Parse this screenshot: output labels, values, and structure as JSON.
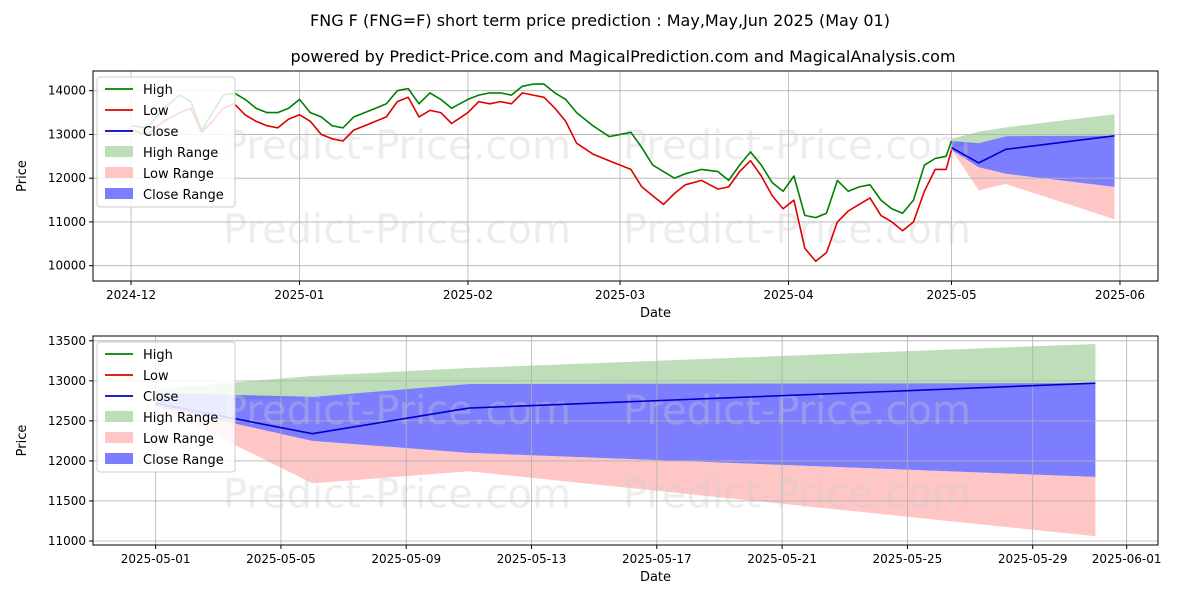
{
  "title": "FNG F (FNG=F) short term price prediction : May,May,Jun 2025 (May 01)",
  "subtitle": "powered by Predict-Price.com and MagicalPrediction.com and MagicalAnalysis.com",
  "watermark": "Predict-Price.com",
  "colors": {
    "high": "#008000",
    "low": "#e00000",
    "close": "#0000cc",
    "high_range": "#a7d3a1",
    "low_range": "#ffb3b3",
    "close_range": "#6666ff"
  },
  "chart_data": [
    {
      "type": "line",
      "xlabel": "Date",
      "ylabel": "Price",
      "ylim": [
        9650,
        14450
      ],
      "yticks": [
        10000,
        11000,
        12000,
        13000,
        14000
      ],
      "xticks": [
        "2024-12",
        "2025-01",
        "2025-02",
        "2025-03",
        "2025-04",
        "2025-05",
        "2025-06"
      ],
      "xlim": [
        "2024-11-24",
        "2025-06-08"
      ],
      "grid": true,
      "legend_position": "top-left",
      "legend": [
        "High",
        "Low",
        "Close",
        "High Range",
        "Low Range",
        "Close Range"
      ],
      "series": [
        {
          "name": "High",
          "x": [
            "2024-12-01",
            "2024-12-04",
            "2024-12-07",
            "2024-12-10",
            "2024-12-12",
            "2024-12-14",
            "2024-12-16",
            "2024-12-18",
            "2024-12-20",
            "2024-12-22",
            "2024-12-24",
            "2024-12-26",
            "2024-12-28",
            "2024-12-30",
            "2025-01-01",
            "2025-01-03",
            "2025-01-05",
            "2025-01-07",
            "2025-01-09",
            "2025-01-11",
            "2025-01-13",
            "2025-01-15",
            "2025-01-17",
            "2025-01-19",
            "2025-01-21",
            "2025-01-23",
            "2025-01-25",
            "2025-01-27",
            "2025-01-29",
            "2025-02-01",
            "2025-02-03",
            "2025-02-05",
            "2025-02-07",
            "2025-02-09",
            "2025-02-11",
            "2025-02-13",
            "2025-02-15",
            "2025-02-17",
            "2025-02-19",
            "2025-02-21",
            "2025-02-24",
            "2025-02-27",
            "2025-03-03",
            "2025-03-05",
            "2025-03-07",
            "2025-03-09",
            "2025-03-11",
            "2025-03-13",
            "2025-03-16",
            "2025-03-19",
            "2025-03-21",
            "2025-03-23",
            "2025-03-25",
            "2025-03-27",
            "2025-03-29",
            "2025-03-31",
            "2025-04-02",
            "2025-04-04",
            "2025-04-06",
            "2025-04-08",
            "2025-04-10",
            "2025-04-12",
            "2025-04-14",
            "2025-04-16",
            "2025-04-18",
            "2025-04-20",
            "2025-04-22",
            "2025-04-24",
            "2025-04-26",
            "2025-04-28",
            "2025-04-30",
            "2025-05-01"
          ],
          "values": [
            13200,
            13150,
            13600,
            13900,
            13750,
            13100,
            13500,
            13900,
            13950,
            13800,
            13600,
            13500,
            13500,
            13600,
            13800,
            13500,
            13400,
            13200,
            13150,
            13400,
            13500,
            13600,
            13700,
            14000,
            14050,
            13700,
            13950,
            13800,
            13600,
            13800,
            13900,
            13950,
            13950,
            13900,
            14100,
            14150,
            14150,
            13950,
            13800,
            13500,
            13200,
            12950,
            13050,
            12700,
            12300,
            12150,
            12000,
            12100,
            12200,
            12150,
            11950,
            12300,
            12600,
            12300,
            11900,
            11700,
            12050,
            11150,
            11100,
            11200,
            11950,
            11700,
            11800,
            11850,
            11500,
            11300,
            11200,
            11500,
            12300,
            12450,
            12500,
            12850
          ]
        },
        {
          "name": "Low",
          "x": [
            "2024-12-01",
            "2024-12-04",
            "2024-12-07",
            "2024-12-10",
            "2024-12-12",
            "2024-12-14",
            "2024-12-16",
            "2024-12-18",
            "2024-12-20",
            "2024-12-22",
            "2024-12-24",
            "2024-12-26",
            "2024-12-28",
            "2024-12-30",
            "2025-01-01",
            "2025-01-03",
            "2025-01-05",
            "2025-01-07",
            "2025-01-09",
            "2025-01-11",
            "2025-01-13",
            "2025-01-15",
            "2025-01-17",
            "2025-01-19",
            "2025-01-21",
            "2025-01-23",
            "2025-01-25",
            "2025-01-27",
            "2025-01-29",
            "2025-02-01",
            "2025-02-03",
            "2025-02-05",
            "2025-02-07",
            "2025-02-09",
            "2025-02-11",
            "2025-02-13",
            "2025-02-15",
            "2025-02-17",
            "2025-02-19",
            "2025-02-21",
            "2025-02-24",
            "2025-02-27",
            "2025-03-03",
            "2025-03-05",
            "2025-03-07",
            "2025-03-09",
            "2025-03-11",
            "2025-03-13",
            "2025-03-16",
            "2025-03-19",
            "2025-03-21",
            "2025-03-23",
            "2025-03-25",
            "2025-03-27",
            "2025-03-29",
            "2025-03-31",
            "2025-04-02",
            "2025-04-04",
            "2025-04-06",
            "2025-04-08",
            "2025-04-10",
            "2025-04-12",
            "2025-04-14",
            "2025-04-16",
            "2025-04-18",
            "2025-04-20",
            "2025-04-22",
            "2025-04-24",
            "2025-04-26",
            "2025-04-28",
            "2025-04-30",
            "2025-05-01"
          ],
          "values": [
            13100,
            13000,
            13300,
            13500,
            13600,
            13050,
            13300,
            13600,
            13700,
            13450,
            13300,
            13200,
            13150,
            13350,
            13450,
            13300,
            13000,
            12900,
            12850,
            13100,
            13200,
            13300,
            13400,
            13750,
            13850,
            13400,
            13550,
            13500,
            13250,
            13500,
            13750,
            13700,
            13750,
            13700,
            13950,
            13900,
            13850,
            13600,
            13300,
            12800,
            12550,
            12400,
            12200,
            11800,
            11600,
            11400,
            11650,
            11850,
            11950,
            11750,
            11800,
            12150,
            12400,
            12050,
            11600,
            11300,
            11500,
            10400,
            10100,
            10300,
            11000,
            11250,
            11400,
            11550,
            11150,
            11000,
            10800,
            11000,
            11700,
            12200,
            12200,
            12650
          ]
        },
        {
          "name": "Close",
          "x": [
            "2025-05-01",
            "2025-05-06",
            "2025-05-11",
            "2025-05-31"
          ],
          "values": [
            12700,
            12350,
            12660,
            12970
          ]
        }
      ],
      "ranges": [
        {
          "name": "High Range",
          "x": [
            "2025-05-01",
            "2025-05-06",
            "2025-05-11",
            "2025-05-31"
          ],
          "upper": [
            12900,
            13060,
            13160,
            13460
          ],
          "lower": [
            12700,
            12800,
            12960,
            12960
          ]
        },
        {
          "name": "Low Range",
          "x": [
            "2025-05-01",
            "2025-05-06",
            "2025-05-11",
            "2025-05-31"
          ],
          "upper": [
            12700,
            12250,
            12100,
            11800
          ],
          "lower": [
            12650,
            11720,
            11870,
            11060
          ]
        },
        {
          "name": "Close Range",
          "x": [
            "2025-05-01",
            "2025-05-06",
            "2025-05-11",
            "2025-05-31"
          ],
          "upper": [
            12850,
            12800,
            12960,
            12970
          ],
          "lower": [
            12650,
            12250,
            12100,
            11800
          ]
        }
      ]
    },
    {
      "type": "line",
      "xlabel": "Date",
      "ylabel": "Price",
      "ylim": [
        10950,
        13560
      ],
      "yticks": [
        11000,
        11500,
        12000,
        12500,
        13000,
        13500
      ],
      "xticks": [
        "2025-05-01",
        "2025-05-05",
        "2025-05-09",
        "2025-05-13",
        "2025-05-17",
        "2025-05-21",
        "2025-05-25",
        "2025-05-29",
        "2025-06-01"
      ],
      "xlim": [
        "2025-04-29",
        "2025-06-02"
      ],
      "grid": true,
      "legend_position": "top-left",
      "legend": [
        "High",
        "Low",
        "Close",
        "High Range",
        "Low Range",
        "Close Range"
      ],
      "series": [
        {
          "name": "Close",
          "x": [
            "2025-05-01",
            "2025-05-06",
            "2025-05-11",
            "2025-05-31"
          ],
          "values": [
            12720,
            12340,
            12660,
            12970
          ]
        }
      ],
      "ranges": [
        {
          "name": "High Range",
          "x": [
            "2025-05-01",
            "2025-05-06",
            "2025-05-11",
            "2025-05-31"
          ],
          "upper": [
            12900,
            13060,
            13160,
            13460
          ],
          "lower": [
            12720,
            12800,
            12960,
            12960
          ]
        },
        {
          "name": "Low Range",
          "x": [
            "2025-05-01",
            "2025-05-06",
            "2025-05-11",
            "2025-05-31"
          ],
          "upper": [
            12720,
            12250,
            12100,
            11800
          ],
          "lower": [
            12690,
            11720,
            11870,
            11060
          ]
        },
        {
          "name": "Close Range",
          "x": [
            "2025-05-01",
            "2025-05-06",
            "2025-05-11",
            "2025-05-31"
          ],
          "upper": [
            12850,
            12800,
            12960,
            12970
          ],
          "lower": [
            12690,
            12250,
            12100,
            11800
          ]
        }
      ]
    }
  ]
}
